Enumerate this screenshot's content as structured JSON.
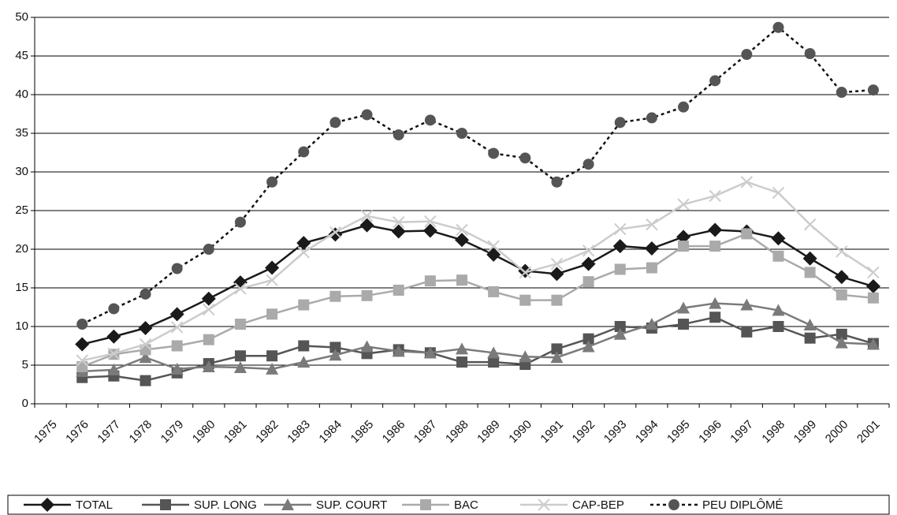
{
  "chart_data": {
    "type": "line",
    "categories": [
      "1975",
      "1976",
      "1977",
      "1978",
      "1979",
      "1980",
      "1981",
      "1982",
      "1983",
      "1984",
      "1985",
      "1986",
      "1987",
      "1988",
      "1989",
      "1990",
      "1991",
      "1992",
      "1993",
      "1994",
      "1995",
      "1996",
      "1997",
      "1998",
      "1999",
      "2000",
      "2001"
    ],
    "series": [
      {
        "name": "TOTAL",
        "color": "#1a1a1a",
        "marker": "diamond",
        "dash": false,
        "values": [
          null,
          7.7,
          8.7,
          9.8,
          11.6,
          13.6,
          15.7,
          17.6,
          20.8,
          21.9,
          23.1,
          22.3,
          22.4,
          21.2,
          19.3,
          17.2,
          16.8,
          18.1,
          20.4,
          20.1,
          21.6,
          22.5,
          22.3,
          21.4,
          18.8,
          16.4,
          15.2
        ]
      },
      {
        "name": "SUP. LONG",
        "color": "#555555",
        "marker": "square",
        "dash": false,
        "values": [
          null,
          3.4,
          3.6,
          3.0,
          4.0,
          5.2,
          6.2,
          6.2,
          7.5,
          7.3,
          6.5,
          7.0,
          6.6,
          5.4,
          5.4,
          5.1,
          7.1,
          8.4,
          10.0,
          9.8,
          10.3,
          11.2,
          9.3,
          10.0,
          8.5,
          9.0,
          7.8
        ]
      },
      {
        "name": "SUP. COURT",
        "color": "#7a7a7a",
        "marker": "triangle",
        "dash": false,
        "values": [
          null,
          4.2,
          4.4,
          6.0,
          4.5,
          4.8,
          4.7,
          4.5,
          5.4,
          6.3,
          7.4,
          6.8,
          6.6,
          7.1,
          6.6,
          6.1,
          6.0,
          7.4,
          9.0,
          10.3,
          12.4,
          13.0,
          12.8,
          12.1,
          10.2,
          7.9,
          7.7
        ]
      },
      {
        "name": "BAC",
        "color": "#aaaaaa",
        "marker": "square",
        "dash": false,
        "values": [
          null,
          4.8,
          6.4,
          7.0,
          7.5,
          8.3,
          10.3,
          11.6,
          12.8,
          13.9,
          14.0,
          14.7,
          15.9,
          16.0,
          14.5,
          13.4,
          13.4,
          15.8,
          17.4,
          17.6,
          20.4,
          20.4,
          22.0,
          19.1,
          17.0,
          14.1,
          13.7
        ]
      },
      {
        "name": "CAP-BEP",
        "color": "#cccccc",
        "marker": "x",
        "dash": false,
        "values": [
          null,
          5.6,
          6.5,
          7.7,
          9.9,
          12.2,
          14.9,
          16.0,
          19.6,
          22.2,
          24.3,
          23.5,
          23.6,
          22.5,
          20.4,
          17.0,
          18.1,
          19.8,
          22.6,
          23.2,
          25.8,
          26.9,
          28.7,
          27.3,
          23.2,
          19.7,
          17.0
        ]
      },
      {
        "name": "PEU DIPLÔMÉ",
        "color": "#555555",
        "marker": "circle",
        "dash": true,
        "values": [
          null,
          10.3,
          12.3,
          14.2,
          17.5,
          20.0,
          23.5,
          28.7,
          32.6,
          36.4,
          37.4,
          34.8,
          36.7,
          35.0,
          32.4,
          31.8,
          28.7,
          31.0,
          36.4,
          37.0,
          38.4,
          41.8,
          45.2,
          48.7,
          45.3,
          40.3,
          40.6
        ]
      }
    ],
    "ylim": [
      0,
      50
    ],
    "yticks": [
      0,
      5,
      10,
      15,
      20,
      25,
      30,
      35,
      40,
      45,
      50
    ],
    "grid": true,
    "legend": "bottom"
  }
}
